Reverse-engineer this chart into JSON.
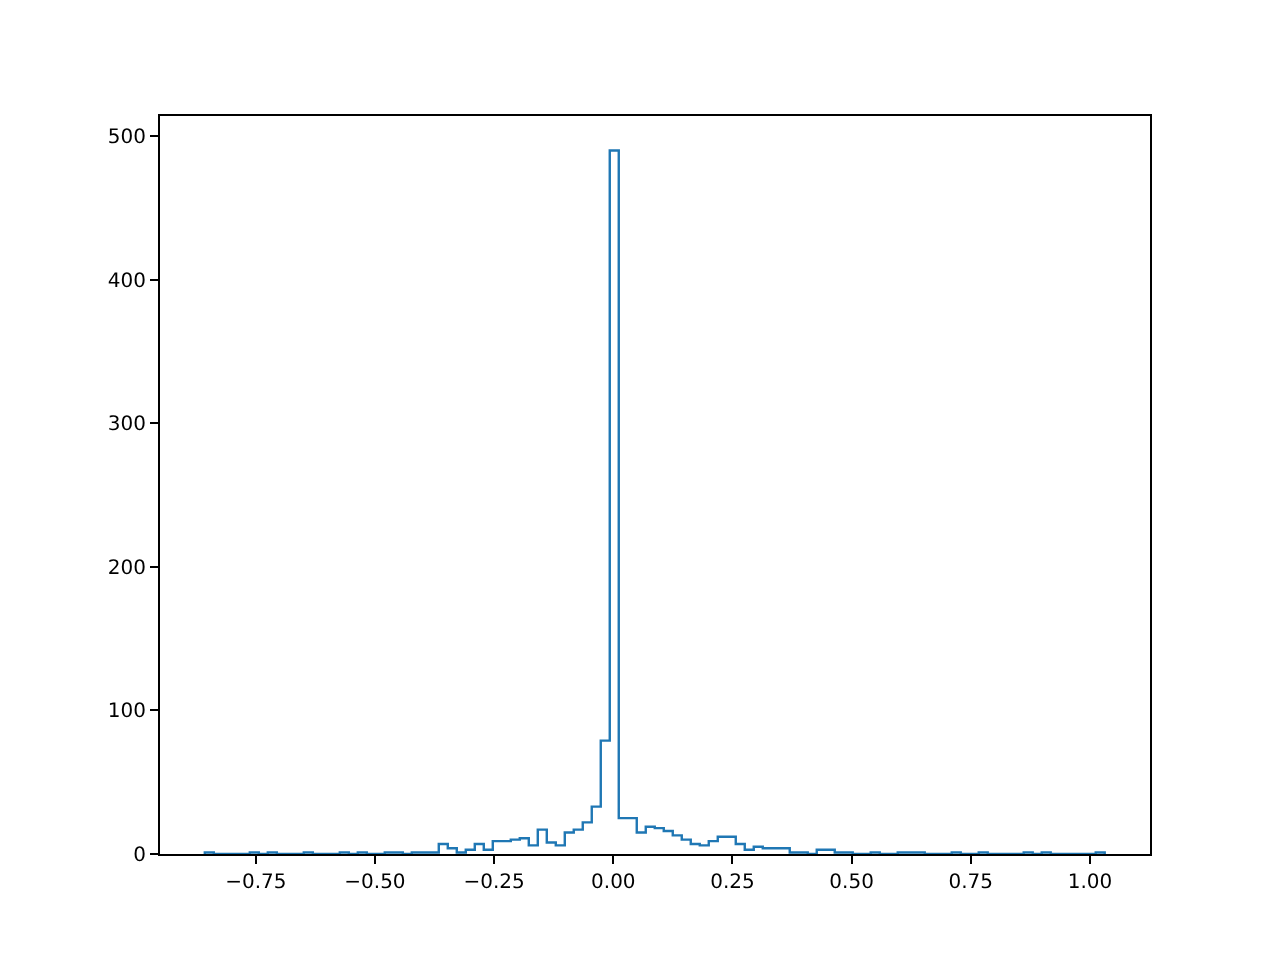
{
  "chart_data": {
    "type": "histogram",
    "bins": [
      -0.857,
      -0.83812,
      -0.81924,
      -0.80036,
      -0.78148,
      -0.7626,
      -0.74372,
      -0.72484,
      -0.70596,
      -0.68708,
      -0.6682,
      -0.64932,
      -0.63044,
      -0.61156,
      -0.59268,
      -0.5738,
      -0.55492,
      -0.53604,
      -0.51716,
      -0.49828,
      -0.4794,
      -0.46052,
      -0.44164,
      -0.42276,
      -0.40388,
      -0.385,
      -0.36612,
      -0.34724,
      -0.32836,
      -0.30948,
      -0.2906,
      -0.27172,
      -0.25284,
      -0.23396,
      -0.21508,
      -0.1962,
      -0.17732,
      -0.15844,
      -0.13956,
      -0.12068,
      -0.1018,
      -0.08292,
      -0.06404,
      -0.04516,
      -0.02628,
      -0.0074,
      0.01148,
      0.03036,
      0.04924,
      0.06812,
      0.087,
      0.10588,
      0.12476,
      0.14364,
      0.16252,
      0.1814,
      0.20028,
      0.21916,
      0.23804,
      0.25692,
      0.2758,
      0.29468,
      0.31356,
      0.33244,
      0.35132,
      0.3702,
      0.38908,
      0.40796,
      0.42684,
      0.44572,
      0.4646,
      0.48348,
      0.50236,
      0.52124,
      0.54012,
      0.559,
      0.57788,
      0.59676,
      0.61564,
      0.63452,
      0.6534,
      0.67228,
      0.69116,
      0.71004,
      0.72892,
      0.7478,
      0.76668,
      0.78556,
      0.80444,
      0.82332,
      0.8422,
      0.86108,
      0.87996,
      0.89884,
      0.91772,
      0.9366,
      0.95548,
      0.97436,
      0.99324,
      1.01212,
      1.031
    ],
    "values": [
      1,
      0,
      0,
      0,
      0,
      1,
      0,
      1,
      0,
      0,
      0,
      1,
      0,
      0,
      0,
      1,
      0,
      1,
      0,
      0,
      1,
      1,
      0,
      1,
      1,
      1,
      7,
      4,
      1,
      3,
      7,
      3,
      9,
      9,
      10,
      11,
      6,
      17,
      8,
      6,
      15,
      17,
      22,
      33,
      79,
      490,
      25,
      25,
      15,
      19,
      18,
      16,
      13,
      10,
      7,
      6,
      9,
      12,
      12,
      7,
      3,
      5,
      4,
      4,
      4,
      1,
      1,
      0,
      3,
      3,
      1,
      1,
      0,
      0,
      1,
      0,
      0,
      1,
      1,
      1,
      0,
      0,
      0,
      1,
      0,
      0,
      1,
      0,
      0,
      0,
      0,
      1,
      0,
      1,
      0,
      0,
      0,
      0,
      0,
      1
    ],
    "color": "#1f77b4",
    "xlim": [
      -0.951,
      1.126
    ],
    "ylim": [
      0,
      514
    ],
    "xticks": [
      {
        "value": -0.75,
        "label": "−0.75"
      },
      {
        "value": -0.5,
        "label": "−0.50"
      },
      {
        "value": -0.25,
        "label": "−0.25"
      },
      {
        "value": 0,
        "label": "0.00"
      },
      {
        "value": 0.25,
        "label": "0.25"
      },
      {
        "value": 0.5,
        "label": "0.50"
      },
      {
        "value": 0.75,
        "label": "0.75"
      },
      {
        "value": 1.0,
        "label": "1.00"
      }
    ],
    "yticks": [
      0,
      100,
      200,
      300,
      400,
      500
    ]
  }
}
